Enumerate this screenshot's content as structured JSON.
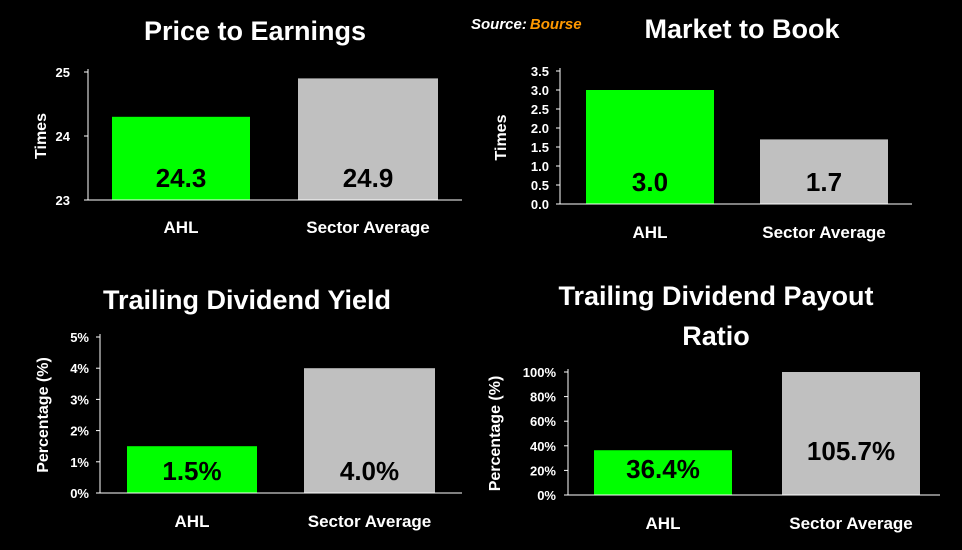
{
  "source": {
    "label": "Source:",
    "name": "Bourse"
  },
  "colors": {
    "background": "#000000",
    "ahl": "#00ff00",
    "sector": "#c0c0c0",
    "axis": "#ffffff",
    "source_name": "#ff9900"
  },
  "chart_data": [
    {
      "type": "bar",
      "title": "Price to Earnings",
      "ylabel": "Times",
      "categories": [
        "AHL",
        "Sector Average"
      ],
      "values": [
        24.3,
        24.9
      ],
      "data_labels": [
        "24.3",
        "24.9"
      ],
      "ylim": [
        23,
        25
      ],
      "yticks": [
        23,
        24,
        25
      ],
      "ytick_labels": [
        "23",
        "24",
        "25"
      ],
      "grid": false,
      "legend": "none"
    },
    {
      "type": "bar",
      "title": "Market to Book",
      "ylabel": "Times",
      "categories": [
        "AHL",
        "Sector Average"
      ],
      "values": [
        3.0,
        1.7
      ],
      "data_labels": [
        "3.0",
        "1.7"
      ],
      "ylim": [
        0,
        3.5
      ],
      "yticks": [
        0,
        0.5,
        1,
        1.5,
        2,
        2.5,
        3,
        3.5
      ],
      "ytick_labels": [
        "0.0",
        "0.5",
        "1.0",
        "1.5",
        "2.0",
        "2.5",
        "3.0",
        "3.5"
      ],
      "grid": false,
      "legend": "none"
    },
    {
      "type": "bar",
      "title": "Trailing Dividend Yield",
      "ylabel": "Percentage (%)",
      "categories": [
        "AHL",
        "Sector Average"
      ],
      "values": [
        1.5,
        4.0
      ],
      "data_labels": [
        "1.5%",
        "4.0%"
      ],
      "ylim": [
        0,
        5
      ],
      "yticks": [
        0,
        1,
        2,
        3,
        4,
        5
      ],
      "ytick_labels": [
        "0%",
        "1%",
        "2%",
        "3%",
        "4%",
        "5%"
      ],
      "grid": false,
      "legend": "none"
    },
    {
      "type": "bar",
      "title": "Trailing Dividend Payout",
      "title_line2": "Ratio",
      "ylabel": "Percentage (%)",
      "categories": [
        "AHL",
        "Sector Average"
      ],
      "values": [
        36.4,
        105.7
      ],
      "data_labels": [
        "36.4%",
        "105.7%"
      ],
      "ylim": [
        0,
        100
      ],
      "yticks": [
        0,
        20,
        40,
        60,
        80,
        100
      ],
      "ytick_labels": [
        "0%",
        "20%",
        "40%",
        "60%",
        "80%",
        "100%"
      ],
      "grid": false,
      "legend": "none"
    }
  ]
}
